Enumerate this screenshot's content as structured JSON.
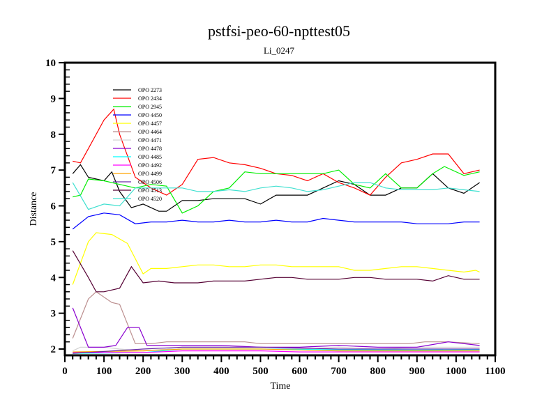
{
  "chart_data": {
    "type": "line",
    "title": "pstfsi-peo-60-npttest05",
    "subtitle": "Li_0247",
    "xlabel": "Time",
    "ylabel": "Distance",
    "xlim": [
      0,
      1100
    ],
    "ylim": [
      1.83,
      10
    ],
    "xticks": [
      "0",
      "100",
      "200",
      "300",
      "400",
      "500",
      "600",
      "700",
      "800",
      "900",
      "1000",
      "1100"
    ],
    "yticks": [
      "2",
      "3",
      "4",
      "5",
      "6",
      "7",
      "8",
      "9",
      "10"
    ],
    "grid": false,
    "legend_position": "top-left",
    "series": [
      {
        "name": "OPO 2273",
        "color": "#000000",
        "points": [
          [
            20,
            6.9
          ],
          [
            40,
            7.15
          ],
          [
            60,
            6.8
          ],
          [
            100,
            6.7
          ],
          [
            120,
            6.95
          ],
          [
            140,
            6.4
          ],
          [
            170,
            5.95
          ],
          [
            200,
            6.05
          ],
          [
            240,
            5.85
          ],
          [
            260,
            5.85
          ],
          [
            300,
            6.15
          ],
          [
            340,
            6.15
          ],
          [
            380,
            6.2
          ],
          [
            420,
            6.2
          ],
          [
            460,
            6.2
          ],
          [
            500,
            6.05
          ],
          [
            540,
            6.3
          ],
          [
            580,
            6.3
          ],
          [
            620,
            6.3
          ],
          [
            660,
            6.5
          ],
          [
            700,
            6.7
          ],
          [
            740,
            6.6
          ],
          [
            780,
            6.3
          ],
          [
            820,
            6.3
          ],
          [
            860,
            6.5
          ],
          [
            900,
            6.5
          ],
          [
            940,
            6.9
          ],
          [
            980,
            6.5
          ],
          [
            1020,
            6.35
          ],
          [
            1060,
            6.65
          ]
        ]
      },
      {
        "name": "OPO 2434",
        "color": "#ff0000",
        "points": [
          [
            20,
            7.25
          ],
          [
            40,
            7.2
          ],
          [
            60,
            7.6
          ],
          [
            100,
            8.4
          ],
          [
            125,
            8.7
          ],
          [
            140,
            8.0
          ],
          [
            180,
            6.8
          ],
          [
            220,
            6.5
          ],
          [
            260,
            6.3
          ],
          [
            300,
            6.6
          ],
          [
            340,
            7.3
          ],
          [
            380,
            7.35
          ],
          [
            420,
            7.2
          ],
          [
            460,
            7.15
          ],
          [
            500,
            7.05
          ],
          [
            540,
            6.9
          ],
          [
            580,
            6.85
          ],
          [
            620,
            6.7
          ],
          [
            660,
            6.9
          ],
          [
            700,
            6.65
          ],
          [
            740,
            6.5
          ],
          [
            780,
            6.3
          ],
          [
            820,
            6.8
          ],
          [
            860,
            7.2
          ],
          [
            900,
            7.3
          ],
          [
            940,
            7.45
          ],
          [
            980,
            7.45
          ],
          [
            1020,
            6.9
          ],
          [
            1060,
            7.0
          ]
        ]
      },
      {
        "name": "OPO 2945",
        "color": "#00ee00",
        "points": [
          [
            20,
            6.25
          ],
          [
            40,
            6.3
          ],
          [
            60,
            6.75
          ],
          [
            100,
            6.7
          ],
          [
            140,
            6.6
          ],
          [
            180,
            6.5
          ],
          [
            220,
            6.6
          ],
          [
            260,
            6.55
          ],
          [
            300,
            5.8
          ],
          [
            340,
            6.0
          ],
          [
            380,
            6.4
          ],
          [
            420,
            6.5
          ],
          [
            460,
            6.95
          ],
          [
            500,
            6.9
          ],
          [
            540,
            6.9
          ],
          [
            580,
            6.9
          ],
          [
            620,
            6.9
          ],
          [
            660,
            6.9
          ],
          [
            700,
            7.0
          ],
          [
            740,
            6.6
          ],
          [
            780,
            6.5
          ],
          [
            820,
            6.9
          ],
          [
            860,
            6.5
          ],
          [
            900,
            6.5
          ],
          [
            940,
            6.9
          ],
          [
            970,
            7.1
          ],
          [
            1020,
            6.85
          ],
          [
            1060,
            6.95
          ]
        ]
      },
      {
        "name": "OPO 4450",
        "color": "#0000ff",
        "points": [
          [
            20,
            5.35
          ],
          [
            60,
            5.7
          ],
          [
            100,
            5.8
          ],
          [
            140,
            5.75
          ],
          [
            180,
            5.5
          ],
          [
            220,
            5.55
          ],
          [
            260,
            5.55
          ],
          [
            300,
            5.6
          ],
          [
            340,
            5.55
          ],
          [
            380,
            5.55
          ],
          [
            420,
            5.6
          ],
          [
            460,
            5.55
          ],
          [
            500,
            5.55
          ],
          [
            540,
            5.6
          ],
          [
            580,
            5.55
          ],
          [
            620,
            5.55
          ],
          [
            660,
            5.65
          ],
          [
            700,
            5.6
          ],
          [
            740,
            5.55
          ],
          [
            780,
            5.55
          ],
          [
            820,
            5.55
          ],
          [
            860,
            5.55
          ],
          [
            900,
            5.5
          ],
          [
            940,
            5.5
          ],
          [
            980,
            5.5
          ],
          [
            1020,
            5.55
          ],
          [
            1060,
            5.55
          ]
        ]
      },
      {
        "name": "OPO 4457",
        "color": "#ffff00",
        "points": [
          [
            20,
            3.8
          ],
          [
            60,
            5.0
          ],
          [
            80,
            5.25
          ],
          [
            120,
            5.2
          ],
          [
            160,
            4.95
          ],
          [
            200,
            4.1
          ],
          [
            220,
            4.25
          ],
          [
            260,
            4.25
          ],
          [
            300,
            4.3
          ],
          [
            340,
            4.35
          ],
          [
            380,
            4.35
          ],
          [
            420,
            4.3
          ],
          [
            460,
            4.3
          ],
          [
            500,
            4.35
          ],
          [
            540,
            4.35
          ],
          [
            580,
            4.3
          ],
          [
            620,
            4.3
          ],
          [
            660,
            4.3
          ],
          [
            700,
            4.3
          ],
          [
            740,
            4.2
          ],
          [
            780,
            4.2
          ],
          [
            820,
            4.25
          ],
          [
            860,
            4.3
          ],
          [
            900,
            4.3
          ],
          [
            940,
            4.25
          ],
          [
            980,
            4.2
          ],
          [
            1020,
            4.15
          ],
          [
            1050,
            4.2
          ],
          [
            1060,
            4.15
          ]
        ]
      },
      {
        "name": "OPO 4464",
        "color": "#bc8f8f",
        "points": [
          [
            20,
            2.3
          ],
          [
            60,
            3.4
          ],
          [
            80,
            3.6
          ],
          [
            120,
            3.3
          ],
          [
            140,
            3.25
          ],
          [
            180,
            2.15
          ],
          [
            220,
            2.15
          ],
          [
            260,
            2.2
          ],
          [
            300,
            2.2
          ],
          [
            380,
            2.2
          ],
          [
            460,
            2.2
          ],
          [
            500,
            2.15
          ],
          [
            600,
            2.15
          ],
          [
            700,
            2.15
          ],
          [
            800,
            2.15
          ],
          [
            880,
            2.15
          ],
          [
            920,
            2.2
          ],
          [
            980,
            2.2
          ],
          [
            1060,
            2.15
          ]
        ]
      },
      {
        "name": "OPO 4471",
        "color": "#d3d3d3",
        "points": [
          [
            20,
            1.95
          ],
          [
            40,
            2.05
          ],
          [
            100,
            2.05
          ],
          [
            140,
            2.0
          ],
          [
            200,
            1.95
          ],
          [
            260,
            2.0
          ],
          [
            300,
            2.05
          ],
          [
            400,
            2.05
          ],
          [
            500,
            2.05
          ],
          [
            600,
            2.0
          ],
          [
            700,
            2.05
          ],
          [
            800,
            2.0
          ],
          [
            900,
            2.05
          ],
          [
            1060,
            2.05
          ]
        ]
      },
      {
        "name": "OPO 4478",
        "color": "#8a00d0",
        "points": [
          [
            20,
            3.15
          ],
          [
            60,
            2.05
          ],
          [
            100,
            2.05
          ],
          [
            130,
            2.1
          ],
          [
            160,
            2.6
          ],
          [
            190,
            2.6
          ],
          [
            210,
            2.1
          ],
          [
            300,
            2.1
          ],
          [
            400,
            2.1
          ],
          [
            500,
            2.05
          ],
          [
            600,
            2.05
          ],
          [
            700,
            2.1
          ],
          [
            800,
            2.05
          ],
          [
            900,
            2.05
          ],
          [
            980,
            2.2
          ],
          [
            1060,
            2.1
          ]
        ]
      },
      {
        "name": "OPO 4485",
        "color": "#00ffff",
        "points": [
          [
            20,
            1.88
          ],
          [
            200,
            1.9
          ],
          [
            300,
            2.0
          ],
          [
            500,
            2.0
          ],
          [
            700,
            1.98
          ],
          [
            900,
            1.97
          ],
          [
            1060,
            1.98
          ]
        ]
      },
      {
        "name": "OPO 4492",
        "color": "#ff00ff",
        "points": [
          [
            20,
            1.9
          ],
          [
            200,
            1.9
          ],
          [
            300,
            1.95
          ],
          [
            500,
            1.95
          ],
          [
            600,
            1.92
          ],
          [
            800,
            1.92
          ],
          [
            1060,
            1.92
          ]
        ]
      },
      {
        "name": "OPO 4499",
        "color": "#ffa500",
        "points": [
          [
            20,
            1.92
          ],
          [
            200,
            1.95
          ],
          [
            300,
            2.0
          ],
          [
            500,
            2.0
          ],
          [
            700,
            1.95
          ],
          [
            900,
            1.95
          ],
          [
            1060,
            1.95
          ]
        ]
      },
      {
        "name": "OPO 4506",
        "color": "#6a2aa8",
        "points": [
          [
            20,
            1.88
          ],
          [
            200,
            2.0
          ],
          [
            300,
            2.05
          ],
          [
            500,
            2.05
          ],
          [
            700,
            2.0
          ],
          [
            900,
            2.0
          ],
          [
            1060,
            2.0
          ]
        ]
      },
      {
        "name": "OPO 4513",
        "color": "#550033",
        "points": [
          [
            20,
            4.75
          ],
          [
            60,
            4.0
          ],
          [
            80,
            3.6
          ],
          [
            100,
            3.6
          ],
          [
            140,
            3.7
          ],
          [
            170,
            4.3
          ],
          [
            200,
            3.85
          ],
          [
            240,
            3.9
          ],
          [
            280,
            3.85
          ],
          [
            340,
            3.85
          ],
          [
            380,
            3.9
          ],
          [
            420,
            3.9
          ],
          [
            460,
            3.9
          ],
          [
            500,
            3.95
          ],
          [
            540,
            4.0
          ],
          [
            580,
            4.0
          ],
          [
            620,
            3.95
          ],
          [
            660,
            3.95
          ],
          [
            700,
            3.95
          ],
          [
            740,
            4.0
          ],
          [
            780,
            4.0
          ],
          [
            820,
            3.95
          ],
          [
            860,
            3.95
          ],
          [
            900,
            3.95
          ],
          [
            940,
            3.9
          ],
          [
            980,
            4.05
          ],
          [
            1020,
            3.95
          ],
          [
            1060,
            3.95
          ]
        ]
      },
      {
        "name": "OPO 4520",
        "color": "#40e0d0",
        "points": [
          [
            20,
            6.65
          ],
          [
            60,
            5.9
          ],
          [
            100,
            6.05
          ],
          [
            140,
            6.0
          ],
          [
            180,
            6.5
          ],
          [
            220,
            6.5
          ],
          [
            260,
            6.5
          ],
          [
            300,
            6.5
          ],
          [
            340,
            6.4
          ],
          [
            380,
            6.4
          ],
          [
            420,
            6.45
          ],
          [
            460,
            6.4
          ],
          [
            500,
            6.5
          ],
          [
            540,
            6.55
          ],
          [
            580,
            6.5
          ],
          [
            620,
            6.4
          ],
          [
            660,
            6.45
          ],
          [
            700,
            6.55
          ],
          [
            740,
            6.65
          ],
          [
            780,
            6.65
          ],
          [
            820,
            6.5
          ],
          [
            860,
            6.45
          ],
          [
            900,
            6.45
          ],
          [
            940,
            6.45
          ],
          [
            980,
            6.5
          ],
          [
            1020,
            6.45
          ],
          [
            1060,
            6.4
          ]
        ]
      }
    ]
  }
}
